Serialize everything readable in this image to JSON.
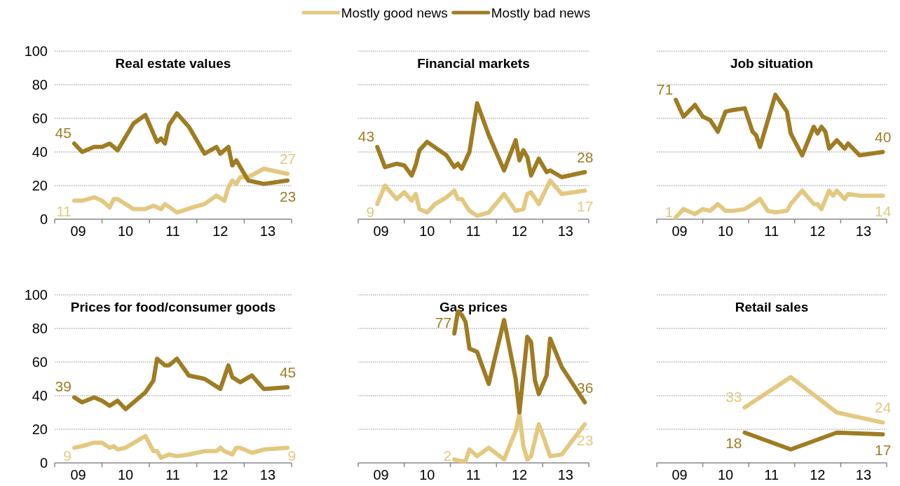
{
  "chart_data": [
    {
      "type": "line",
      "title": "Real estate values",
      "xlim": [
        "2009",
        "2014"
      ],
      "ylim": [
        0,
        100
      ],
      "yticks": [
        0,
        20,
        40,
        60,
        80,
        100
      ],
      "grid": "y",
      "legend": "top",
      "xticks": [
        {
          "value": "2009-07",
          "label": "09"
        },
        {
          "value": "2010-07",
          "label": "10"
        },
        {
          "value": "2011-07",
          "label": "11"
        },
        {
          "value": "2012-07",
          "label": "12"
        },
        {
          "value": "2013-07",
          "label": "13"
        }
      ],
      "series": [
        {
          "name": "Mostly good news",
          "color": "#e3c880",
          "x": [
            "2009-06",
            "2009-08",
            "2009-11",
            "2010-01",
            "2010-03",
            "2010-04",
            "2010-05",
            "2010-09",
            "2010-12",
            "2011-02",
            "2011-04",
            "2011-05",
            "2011-08",
            "2011-12",
            "2012-03",
            "2012-06",
            "2012-08",
            "2012-09",
            "2012-10",
            "2012-11",
            "2012-12",
            "2013-02",
            "2013-06",
            "2013-12"
          ],
          "values": [
            11,
            11,
            13,
            11,
            7,
            12,
            12,
            6,
            6,
            8,
            6,
            9,
            4,
            7,
            9,
            14,
            11,
            19,
            23,
            21,
            25,
            25,
            30,
            27
          ],
          "value_labels": [
            "11",
            null,
            null,
            null,
            null,
            null,
            null,
            null,
            null,
            null,
            null,
            null,
            null,
            null,
            null,
            null,
            null,
            null,
            null,
            null,
            null,
            null,
            null,
            "27"
          ]
        },
        {
          "name": "Mostly bad news",
          "color": "#9f7c23",
          "x": [
            "2009-06",
            "2009-08",
            "2009-11",
            "2010-01",
            "2010-03",
            "2010-05",
            "2010-09",
            "2010-12",
            "2011-03",
            "2011-04",
            "2011-05",
            "2011-06",
            "2011-08",
            "2011-11",
            "2012-03",
            "2012-06",
            "2012-07",
            "2012-09",
            "2012-10",
            "2012-11",
            "2013-02",
            "2013-06",
            "2013-12"
          ],
          "values": [
            45,
            40,
            43,
            43,
            45,
            41,
            57,
            62,
            46,
            48,
            45,
            56,
            63,
            55,
            39,
            43,
            39,
            43,
            32,
            35,
            23,
            21,
            23
          ],
          "value_labels": [
            "45",
            null,
            null,
            null,
            null,
            null,
            null,
            null,
            null,
            null,
            null,
            null,
            null,
            null,
            null,
            null,
            null,
            null,
            null,
            null,
            null,
            null,
            "23"
          ]
        }
      ]
    },
    {
      "type": "line",
      "title": "Financial markets",
      "xlim": [
        "2009",
        "2014"
      ],
      "ylim": [
        0,
        100
      ],
      "yticks": [
        0,
        20,
        40,
        60,
        80,
        100
      ],
      "grid": "y",
      "tick_labels": "x",
      "xticks": [
        {
          "value": "2009-07",
          "label": "09"
        },
        {
          "value": "2010-07",
          "label": "10"
        },
        {
          "value": "2011-07",
          "label": "11"
        },
        {
          "value": "2012-07",
          "label": "12"
        },
        {
          "value": "2013-07",
          "label": "13"
        }
      ],
      "series": [
        {
          "color": "#e3c880",
          "x": [
            "2009-06",
            "2009-08",
            "2009-11",
            "2010-01",
            "2010-03",
            "2010-04",
            "2010-05",
            "2010-07",
            "2010-09",
            "2010-12",
            "2011-02",
            "2011-03",
            "2011-04",
            "2011-06",
            "2011-08",
            "2011-11",
            "2012-03",
            "2012-06",
            "2012-08",
            "2012-09",
            "2012-10",
            "2012-12",
            "2013-03",
            "2013-06",
            "2013-12"
          ],
          "values": [
            9,
            20,
            12,
            16,
            11,
            15,
            6,
            4,
            9,
            13,
            17,
            12,
            12,
            5,
            2,
            4,
            15,
            5,
            6,
            15,
            16,
            9,
            23,
            15,
            17
          ],
          "value_labels": [
            "9",
            null,
            null,
            null,
            null,
            null,
            null,
            null,
            null,
            null,
            null,
            null,
            null,
            null,
            null,
            null,
            null,
            null,
            null,
            null,
            null,
            null,
            null,
            null,
            "17"
          ]
        },
        {
          "color": "#9f7c23",
          "x": [
            "2009-06",
            "2009-08",
            "2009-11",
            "2010-01",
            "2010-03",
            "2010-04",
            "2010-05",
            "2010-07",
            "2010-12",
            "2011-02",
            "2011-03",
            "2011-04",
            "2011-06",
            "2011-08",
            "2011-11",
            "2012-03",
            "2012-06",
            "2012-07",
            "2012-08",
            "2012-09",
            "2012-10",
            "2012-12",
            "2013-02",
            "2013-03",
            "2013-06",
            "2013-12"
          ],
          "values": [
            43,
            31,
            33,
            32,
            26,
            32,
            41,
            46,
            38,
            31,
            33,
            30,
            40,
            69,
            50,
            29,
            47,
            35,
            41,
            37,
            26,
            36,
            28,
            29,
            25,
            28
          ],
          "value_labels": [
            "43",
            null,
            null,
            null,
            null,
            null,
            null,
            null,
            null,
            null,
            null,
            null,
            null,
            null,
            null,
            null,
            null,
            null,
            null,
            null,
            null,
            null,
            null,
            null,
            null,
            "28"
          ]
        }
      ]
    },
    {
      "type": "line",
      "title": "Job situation",
      "xlim": [
        "2009",
        "2014"
      ],
      "ylim": [
        0,
        100
      ],
      "yticks": [
        0,
        20,
        40,
        60,
        80,
        100
      ],
      "grid": "y",
      "tick_labels": "x",
      "xticks": [
        {
          "value": "2009-07",
          "label": "09"
        },
        {
          "value": "2010-07",
          "label": "10"
        },
        {
          "value": "2011-07",
          "label": "11"
        },
        {
          "value": "2012-07",
          "label": "12"
        },
        {
          "value": "2013-07",
          "label": "13"
        }
      ],
      "series": [
        {
          "color": "#e3c880",
          "x": [
            "2009-06",
            "2009-08",
            "2009-11",
            "2010-01",
            "2010-03",
            "2010-05",
            "2010-07",
            "2010-09",
            "2010-12",
            "2011-02",
            "2011-04",
            "2011-06",
            "2011-08",
            "2011-11",
            "2011-12",
            "2012-03",
            "2012-06",
            "2012-07",
            "2012-08",
            "2012-10",
            "2012-11",
            "2012-12",
            "2013-02",
            "2013-03",
            "2013-06",
            "2013-12"
          ],
          "values": [
            1,
            6,
            3,
            6,
            5,
            9,
            5,
            5,
            6,
            9,
            12,
            5,
            4,
            5,
            9,
            17,
            9,
            9,
            6,
            17,
            14,
            17,
            12,
            15,
            14,
            14
          ],
          "value_labels": [
            "1",
            null,
            null,
            null,
            null,
            null,
            null,
            null,
            null,
            null,
            null,
            null,
            null,
            null,
            null,
            null,
            null,
            null,
            null,
            null,
            null,
            null,
            null,
            null,
            null,
            "14"
          ]
        },
        {
          "color": "#9f7c23",
          "x": [
            "2009-06",
            "2009-08",
            "2009-11",
            "2010-01",
            "2010-03",
            "2010-05",
            "2010-07",
            "2010-09",
            "2010-12",
            "2011-02",
            "2011-03",
            "2011-04",
            "2011-08",
            "2011-11",
            "2011-12",
            "2012-03",
            "2012-06",
            "2012-07",
            "2012-08",
            "2012-09",
            "2012-10",
            "2012-12",
            "2013-02",
            "2013-03",
            "2013-06",
            "2013-12"
          ],
          "values": [
            71,
            61,
            68,
            61,
            59,
            52,
            64,
            65,
            66,
            52,
            50,
            43,
            74,
            64,
            51,
            38,
            55,
            51,
            55,
            52,
            42,
            47,
            42,
            45,
            38,
            40
          ],
          "value_labels": [
            "71",
            null,
            null,
            null,
            null,
            null,
            null,
            null,
            null,
            null,
            null,
            null,
            null,
            null,
            null,
            null,
            null,
            null,
            null,
            null,
            null,
            null,
            null,
            null,
            null,
            "40"
          ]
        }
      ]
    },
    {
      "type": "line",
      "title": "Prices for food/consumer goods",
      "xlim": [
        "2009",
        "2014"
      ],
      "ylim": [
        0,
        100
      ],
      "yticks": [
        0,
        20,
        40,
        60,
        80,
        100
      ],
      "grid": "y",
      "xticks": [
        {
          "value": "2009-07",
          "label": "09"
        },
        {
          "value": "2010-07",
          "label": "10"
        },
        {
          "value": "2011-07",
          "label": "11"
        },
        {
          "value": "2012-07",
          "label": "12"
        },
        {
          "value": "2013-07",
          "label": "13"
        }
      ],
      "series": [
        {
          "color": "#e3c880",
          "x": [
            "2009-06",
            "2009-08",
            "2009-11",
            "2010-01",
            "2010-03",
            "2010-04",
            "2010-05",
            "2010-07",
            "2010-12",
            "2011-02",
            "2011-03",
            "2011-04",
            "2011-06",
            "2011-08",
            "2011-11",
            "2012-03",
            "2012-06",
            "2012-07",
            "2012-08",
            "2012-10",
            "2012-11",
            "2012-12",
            "2013-03",
            "2013-06",
            "2013-12"
          ],
          "values": [
            9,
            10,
            12,
            12,
            9,
            10,
            8,
            9,
            16,
            7,
            7,
            3,
            5,
            4,
            5,
            7,
            7,
            9,
            7,
            5,
            9,
            9,
            6,
            8,
            9
          ],
          "value_labels": [
            "9",
            null,
            null,
            null,
            null,
            null,
            null,
            null,
            null,
            null,
            null,
            null,
            null,
            null,
            null,
            null,
            null,
            null,
            null,
            null,
            null,
            null,
            null,
            null,
            "9"
          ]
        },
        {
          "color": "#9f7c23",
          "x": [
            "2009-06",
            "2009-08",
            "2009-11",
            "2010-01",
            "2010-03",
            "2010-05",
            "2010-07",
            "2010-09",
            "2010-12",
            "2011-02",
            "2011-03",
            "2011-05",
            "2011-06",
            "2011-08",
            "2011-11",
            "2012-03",
            "2012-07",
            "2012-09",
            "2012-10",
            "2012-12",
            "2013-03",
            "2013-06",
            "2013-12"
          ],
          "values": [
            39,
            36,
            39,
            37,
            34,
            37,
            32,
            36,
            42,
            49,
            62,
            58,
            58,
            62,
            52,
            50,
            44,
            58,
            51,
            48,
            52,
            44,
            45
          ],
          "value_labels": [
            "39",
            null,
            null,
            null,
            null,
            null,
            null,
            null,
            null,
            null,
            null,
            null,
            null,
            null,
            null,
            null,
            null,
            null,
            null,
            null,
            null,
            null,
            "45"
          ]
        }
      ]
    },
    {
      "type": "line",
      "title": "Gas prices",
      "xlim": [
        "2009",
        "2014"
      ],
      "ylim": [
        0,
        100
      ],
      "yticks": [
        0,
        20,
        40,
        60,
        80,
        100
      ],
      "grid": "y",
      "tick_labels": "x",
      "xticks": [
        {
          "value": "2009-07",
          "label": "09"
        },
        {
          "value": "2010-07",
          "label": "10"
        },
        {
          "value": "2011-07",
          "label": "11"
        },
        {
          "value": "2012-07",
          "label": "12"
        },
        {
          "value": "2013-07",
          "label": "13"
        }
      ],
      "series": [
        {
          "color": "#e3c880",
          "x": [
            "2011-02",
            "2011-04",
            "2011-05",
            "2011-06",
            "2011-08",
            "2011-11",
            "2012-03",
            "2012-06",
            "2012-07",
            "2012-08",
            "2012-09",
            "2012-10",
            "2012-12",
            "2013-02",
            "2013-03",
            "2013-06",
            "2013-12"
          ],
          "values": [
            2,
            1,
            1,
            8,
            4,
            9,
            2,
            19,
            29,
            10,
            2,
            4,
            23,
            10,
            4,
            5,
            23
          ],
          "value_labels": [
            "2",
            null,
            null,
            null,
            null,
            null,
            null,
            null,
            null,
            null,
            null,
            null,
            null,
            null,
            null,
            null,
            "23"
          ]
        },
        {
          "color": "#9f7c23",
          "x": [
            "2011-02",
            "2011-03",
            "2011-04",
            "2011-05",
            "2011-06",
            "2011-08",
            "2011-11",
            "2012-03",
            "2012-06",
            "2012-07",
            "2012-09",
            "2012-10",
            "2012-11",
            "2012-12",
            "2013-02",
            "2013-03",
            "2013-06",
            "2013-12"
          ],
          "values": [
            77,
            90,
            88,
            84,
            68,
            66,
            47,
            85,
            50,
            30,
            75,
            72,
            49,
            41,
            52,
            74,
            57,
            36
          ],
          "value_labels": [
            "77",
            null,
            null,
            null,
            null,
            null,
            null,
            null,
            null,
            null,
            null,
            null,
            null,
            null,
            null,
            null,
            null,
            "36"
          ]
        }
      ]
    },
    {
      "type": "line",
      "title": "Retail sales",
      "xlim": [
        "2009",
        "2014"
      ],
      "ylim": [
        0,
        100
      ],
      "yticks": [
        0,
        20,
        40,
        60,
        80,
        100
      ],
      "grid": "y",
      "tick_labels": "x",
      "xticks": [
        {
          "value": "2009-07",
          "label": "09"
        },
        {
          "value": "2010-07",
          "label": "10"
        },
        {
          "value": "2011-07",
          "label": "11"
        },
        {
          "value": "2012-07",
          "label": "12"
        },
        {
          "value": "2013-07",
          "label": "13"
        }
      ],
      "series": [
        {
          "color": "#e3c880",
          "x": [
            "2010-12",
            "2011-12",
            "2012-12",
            "2013-12"
          ],
          "values": [
            33,
            51,
            30,
            24
          ],
          "value_labels": [
            "33",
            null,
            null,
            "24"
          ]
        },
        {
          "color": "#9f7c23",
          "x": [
            "2010-12",
            "2011-12",
            "2012-12",
            "2013-12"
          ],
          "values": [
            18,
            8,
            18,
            17
          ],
          "value_labels": [
            "18",
            null,
            null,
            "17"
          ]
        }
      ]
    }
  ]
}
